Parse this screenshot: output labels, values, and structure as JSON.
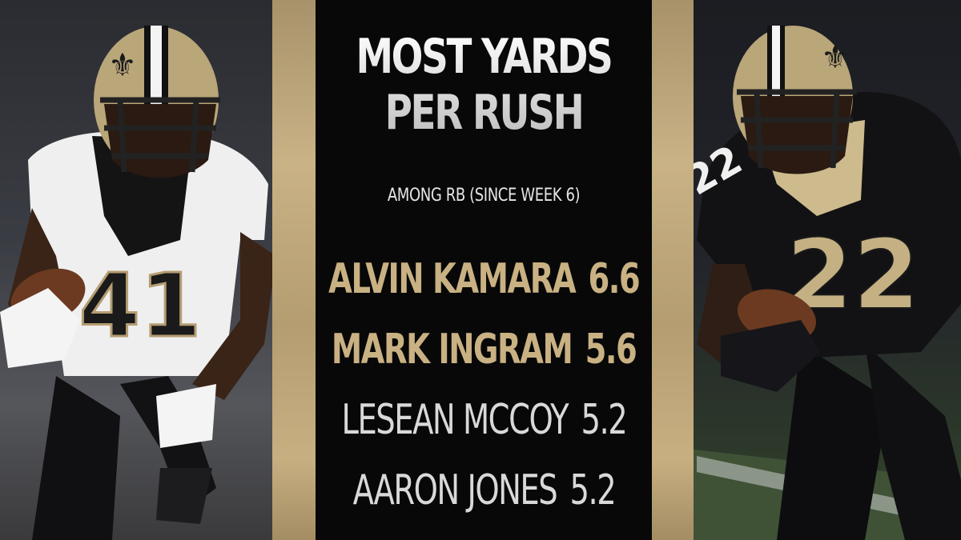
{
  "title_lines": [
    "MOST YARDS",
    "PER RUSH"
  ],
  "subtitle": "AMONG RB (SINCE WEEK 6)",
  "rankings": [
    {
      "name": "ALVIN KAMARA",
      "value": "6.6",
      "style": "gold"
    },
    {
      "name": "MARK INGRAM",
      "value": "5.6",
      "style": "gold"
    },
    {
      "name": "LESEAN MCCOY",
      "value": "5.2",
      "style": "silver"
    },
    {
      "name": "AARON JONES",
      "value": "5.2",
      "style": "silver"
    }
  ],
  "players": {
    "left_jersey_number": "41",
    "right_jersey_number": "22"
  },
  "colors": {
    "gold": "#c9b183",
    "black": "#080808",
    "white_jersey": "#f2f2f2",
    "black_jersey": "#111111"
  }
}
